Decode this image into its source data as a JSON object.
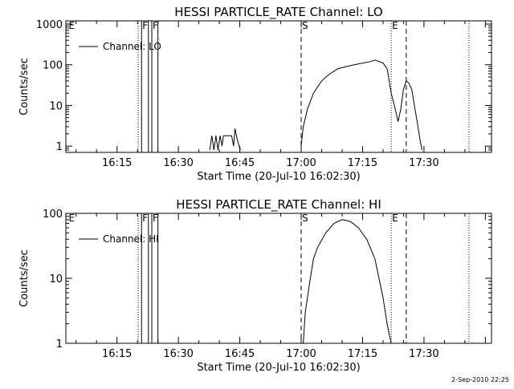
{
  "chart_data": [
    {
      "type": "line",
      "title": "HESSI PARTICLE_RATE Channel: LO",
      "xlabel": "Start Time (20-Jul-10 16:02:30)",
      "ylabel": "Counts/sec",
      "yscale": "log",
      "xlim": [
        "16:02:30",
        "17:46:30"
      ],
      "ylim": [
        0.7,
        1200
      ],
      "xticks": [
        "16:15",
        "16:30",
        "16:45",
        "17:00",
        "17:15",
        "17:30"
      ],
      "yticks": [
        "1",
        "10",
        "100",
        "1000"
      ],
      "legend": {
        "text": "Channel: LO",
        "position": "top-left"
      },
      "grid": false,
      "markers": [
        {
          "time": "16:03:00",
          "label": "E",
          "style": "none"
        },
        {
          "time": "16:20:10",
          "label": "",
          "style": "dotted"
        },
        {
          "time": "16:21:00",
          "label": "F",
          "style": "solid"
        },
        {
          "time": "16:22:40",
          "label": "",
          "style": "solid"
        },
        {
          "time": "16:23:30",
          "label": "F",
          "style": "solid"
        },
        {
          "time": "16:25:00",
          "label": "",
          "style": "solid"
        },
        {
          "time": "17:00:00",
          "label": "S",
          "style": "dashed"
        },
        {
          "time": "17:22:00",
          "label": "E",
          "style": "dotted"
        },
        {
          "time": "17:25:40",
          "label": "",
          "style": "dashed"
        },
        {
          "time": "17:41:00",
          "label": "",
          "style": "dotted"
        }
      ],
      "series": [
        {
          "points": [
            [
              "16:37:40",
              0.8
            ],
            [
              "16:38:10",
              1.8
            ],
            [
              "16:38:40",
              0.8
            ],
            [
              "16:39:10",
              1.8
            ],
            [
              "16:39:40",
              0.8
            ],
            [
              "16:40:10",
              1.8
            ],
            [
              "16:40:40",
              1.0
            ],
            [
              "16:41:00",
              1.8
            ],
            [
              "16:43:00",
              1.8
            ],
            [
              "16:43:30",
              1.0
            ],
            [
              "16:43:50",
              2.7
            ],
            [
              "16:44:20",
              1.5
            ],
            [
              "16:44:50",
              1.0
            ],
            [
              "16:45:10",
              0.8
            ],
            null,
            [
              "17:00:00",
              1.0
            ],
            [
              "17:00:30",
              3.0
            ],
            [
              "17:01:30",
              8.0
            ],
            [
              "17:03:00",
              20
            ],
            [
              "17:05:00",
              40
            ],
            [
              "17:07:00",
              60
            ],
            [
              "17:09:00",
              80
            ],
            [
              "17:11:00",
              90
            ],
            [
              "17:13:00",
              100
            ],
            [
              "17:15:00",
              110
            ],
            [
              "17:17:00",
              120
            ],
            [
              "17:18:00",
              130
            ],
            [
              "17:19:00",
              120
            ],
            [
              "17:20:00",
              110
            ],
            [
              "17:21:00",
              80
            ],
            [
              "17:21:30",
              40
            ],
            [
              "17:22:00",
              20
            ],
            [
              "17:23:00",
              8.0
            ],
            [
              "17:23:40",
              4.0
            ],
            [
              "17:24:20",
              8.0
            ],
            [
              "17:25:00",
              25
            ],
            [
              "17:25:40",
              40
            ],
            [
              "17:26:20",
              35
            ],
            [
              "17:27:00",
              25
            ],
            [
              "17:27:40",
              10
            ],
            [
              "17:28:20",
              4.0
            ],
            [
              "17:29:00",
              1.5
            ],
            [
              "17:29:30",
              0.8
            ]
          ]
        }
      ]
    },
    {
      "type": "line",
      "title": "HESSI PARTICLE_RATE Channel: HI",
      "xlabel": "Start Time (20-Jul-10 16:02:30)",
      "ylabel": "Counts/sec",
      "yscale": "log",
      "xlim": [
        "16:02:30",
        "17:46:30"
      ],
      "ylim": [
        1,
        100
      ],
      "xticks": [
        "16:15",
        "16:30",
        "16:45",
        "17:00",
        "17:15",
        "17:30"
      ],
      "yticks": [
        "1",
        "10",
        "100"
      ],
      "legend": {
        "text": "Channel: HI",
        "position": "top-left"
      },
      "grid": false,
      "markers": [
        {
          "time": "16:03:00",
          "label": "E",
          "style": "none"
        },
        {
          "time": "16:20:10",
          "label": "",
          "style": "dotted"
        },
        {
          "time": "16:21:00",
          "label": "F",
          "style": "solid"
        },
        {
          "time": "16:22:40",
          "label": "",
          "style": "solid"
        },
        {
          "time": "16:23:30",
          "label": "F",
          "style": "solid"
        },
        {
          "time": "16:25:00",
          "label": "",
          "style": "solid"
        },
        {
          "time": "17:00:00",
          "label": "S",
          "style": "dashed"
        },
        {
          "time": "17:22:00",
          "label": "E",
          "style": "dotted"
        },
        {
          "time": "17:25:40",
          "label": "",
          "style": "dashed"
        },
        {
          "time": "17:41:00",
          "label": "",
          "style": "dotted"
        }
      ],
      "series": [
        {
          "points": [
            [
              "17:00:30",
              1.0
            ],
            [
              "17:01:00",
              3.0
            ],
            [
              "17:02:00",
              8.0
            ],
            [
              "17:03:00",
              20
            ],
            [
              "17:04:00",
              30
            ],
            [
              "17:06:00",
              50
            ],
            [
              "17:08:00",
              70
            ],
            [
              "17:10:00",
              80
            ],
            [
              "17:12:00",
              75
            ],
            [
              "17:14:00",
              60
            ],
            [
              "17:16:00",
              40
            ],
            [
              "17:18:00",
              20
            ],
            [
              "17:19:00",
              10
            ],
            [
              "17:20:00",
              5.0
            ],
            [
              "17:21:00",
              2.0
            ],
            [
              "17:22:00",
              1.0
            ]
          ]
        }
      ]
    }
  ],
  "footer": {
    "stamp": "2-Sep-2010 22:25"
  }
}
